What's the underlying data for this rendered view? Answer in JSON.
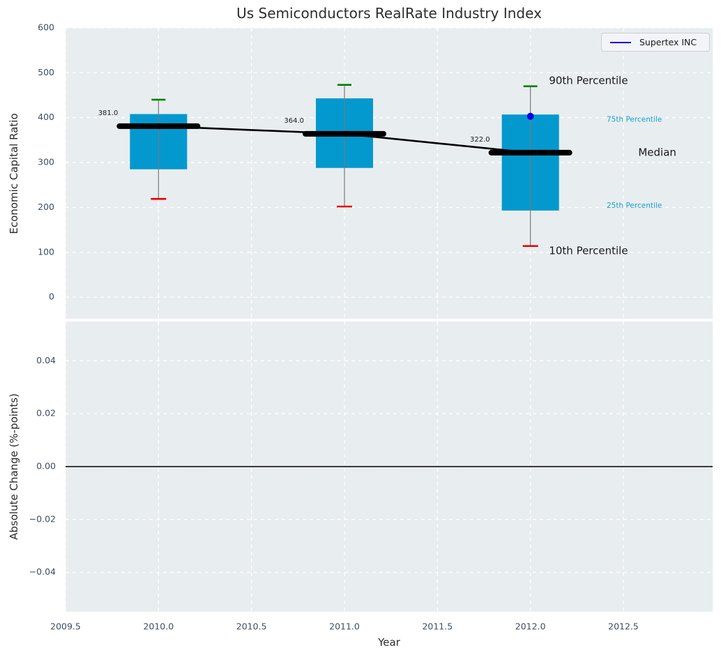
{
  "title": "Us Semiconductors RealRate Industry Index",
  "legend": {
    "label": "Supertex INC",
    "line_color": "#0000e6"
  },
  "colors": {
    "plot_bg": "#e8edf0",
    "grid": "#ffffff",
    "tick_text": "#3d4d63",
    "text": "#2b2b2b",
    "box_fill": "#0399cf",
    "whisker": "#7a7a7a",
    "cap_top": "#008000",
    "cap_bottom": "#e60000",
    "median": "#000000",
    "company": "#0000e6",
    "percentile_small": "#1aa0ce",
    "percentile_big": "#1a1a1a"
  },
  "x_axis": {
    "label": "Year",
    "lim": [
      2009.5,
      2012.98
    ],
    "ticks": [
      {
        "v": 2009.5,
        "label": "2009.5"
      },
      {
        "v": 2010.0,
        "label": "2010.0"
      },
      {
        "v": 2010.5,
        "label": "2010.5"
      },
      {
        "v": 2011.0,
        "label": "2011.0"
      },
      {
        "v": 2011.5,
        "label": "2011.5"
      },
      {
        "v": 2012.0,
        "label": "2012.0"
      },
      {
        "v": 2012.5,
        "label": "2012.5"
      }
    ]
  },
  "chart_data": [
    {
      "type": "boxplot",
      "title": "Us Semiconductors RealRate Industry Index",
      "ylabel": "Economic Capital Ratio",
      "ylim": [
        -48,
        600
      ],
      "grid": true,
      "legend_position": "upper right",
      "yticks": [
        {
          "v": 0,
          "label": "0"
        },
        {
          "v": 100,
          "label": "100"
        },
        {
          "v": 200,
          "label": "200"
        },
        {
          "v": 300,
          "label": "300"
        },
        {
          "v": 400,
          "label": "400"
        },
        {
          "v": 500,
          "label": "500"
        },
        {
          "v": 600,
          "label": "600"
        }
      ],
      "categories": [
        2010,
        2011,
        2012
      ],
      "series": [
        {
          "name": "10th Percentile",
          "values": [
            219,
            202,
            114
          ]
        },
        {
          "name": "25th Percentile",
          "values": [
            285,
            288,
            193
          ]
        },
        {
          "name": "Median",
          "values": [
            381,
            364,
            322
          ]
        },
        {
          "name": "75th Percentile",
          "values": [
            408,
            443,
            407
          ]
        },
        {
          "name": "90th Percentile",
          "values": [
            440,
            473,
            470
          ]
        },
        {
          "name": "Supertex INC",
          "values": [
            null,
            null,
            403
          ]
        }
      ],
      "median_labels": [
        "381.0",
        "364.0",
        "322.0"
      ],
      "annotations": [
        {
          "text": "90th Percentile",
          "x": 2012.1,
          "y": 482,
          "size": 15,
          "color": "#1a1a1a"
        },
        {
          "text": "75th Percentile",
          "x": 2012.41,
          "y": 396,
          "size": 10.5,
          "color": "#1aa0ce"
        },
        {
          "text": "Median",
          "x": 2012.58,
          "y": 322,
          "size": 15,
          "color": "#1a1a1a"
        },
        {
          "text": "25th Percentile",
          "x": 2012.41,
          "y": 204,
          "size": 10.5,
          "color": "#1aa0ce"
        },
        {
          "text": "10th Percentile",
          "x": 2012.1,
          "y": 103,
          "size": 15,
          "color": "#1a1a1a"
        }
      ]
    },
    {
      "type": "line",
      "ylabel": "Absolute Change (%-points)",
      "ylim": [
        -0.0549,
        0.0549
      ],
      "grid": true,
      "zero_line": 0.0,
      "yticks": [
        {
          "v": 0.04,
          "label": "0.04"
        },
        {
          "v": 0.02,
          "label": "0.02"
        },
        {
          "v": 0.0,
          "label": "0.00"
        },
        {
          "v": -0.02,
          "label": "−0.02"
        },
        {
          "v": -0.04,
          "label": "−0.04"
        }
      ]
    }
  ]
}
